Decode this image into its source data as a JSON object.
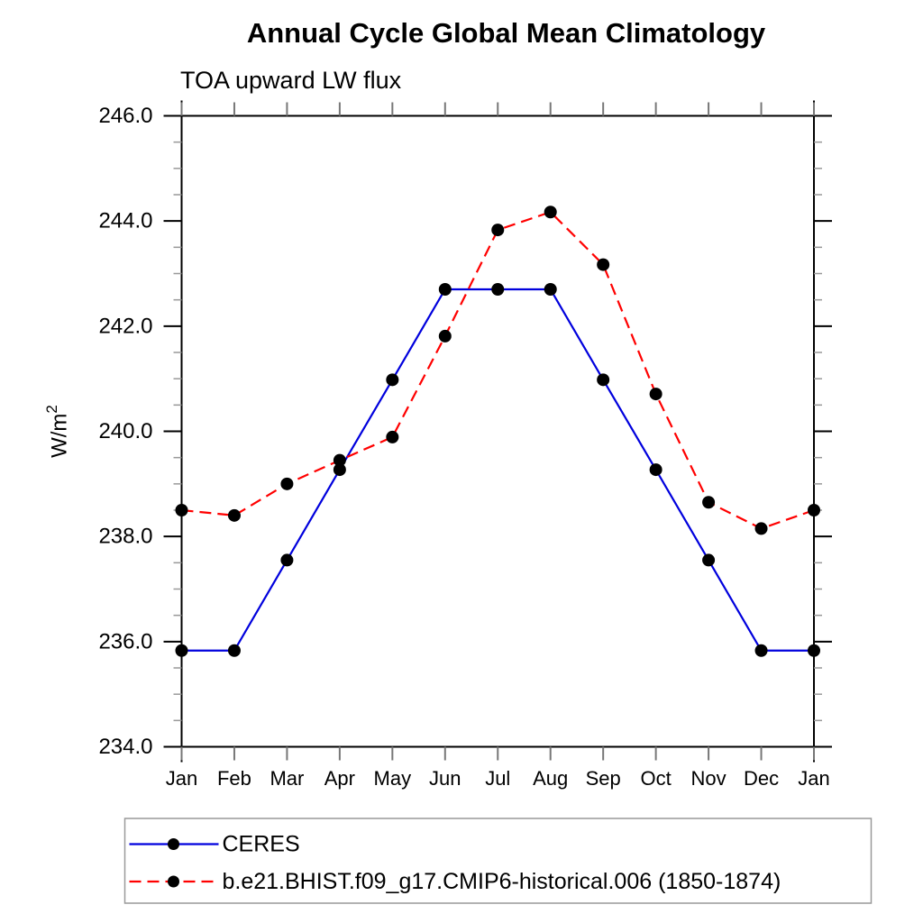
{
  "chart_data": {
    "type": "line",
    "title": "Annual Cycle Global Mean Climatology",
    "subtitle": "TOA upward LW flux",
    "ylabel": "W/m²",
    "xlabel": "",
    "ylim": [
      234.0,
      246.0
    ],
    "ytick_interval": 2.0,
    "yminor_interval": 0.5,
    "ytick_labels": [
      "234.0",
      "236.0",
      "238.0",
      "240.0",
      "242.0",
      "244.0",
      "246.0"
    ],
    "categories": [
      "Jan",
      "Feb",
      "Mar",
      "Apr",
      "May",
      "Jun",
      "Jul",
      "Aug",
      "Sep",
      "Oct",
      "Nov",
      "Dec",
      "Jan"
    ],
    "grid": false,
    "legend_position": "bottom-left",
    "series": [
      {
        "name": "CERES",
        "line_color": "#0000dd",
        "line_style": "solid",
        "marker": "filled-circle",
        "marker_color": "#000000",
        "values": [
          235.83,
          235.83,
          237.55,
          239.27,
          240.98,
          242.7,
          242.7,
          242.7,
          240.98,
          239.27,
          237.55,
          235.83,
          235.83
        ]
      },
      {
        "name": "b.e21.BHIST.f09_g17.CMIP6-historical.006 (1850-1874)",
        "line_color": "#ff0000",
        "line_style": "dashed",
        "marker": "filled-circle",
        "marker_color": "#000000",
        "values": [
          238.5,
          238.4,
          239.0,
          239.45,
          239.89,
          241.81,
          243.83,
          244.17,
          243.17,
          240.71,
          238.65,
          238.15,
          238.5
        ]
      }
    ]
  }
}
